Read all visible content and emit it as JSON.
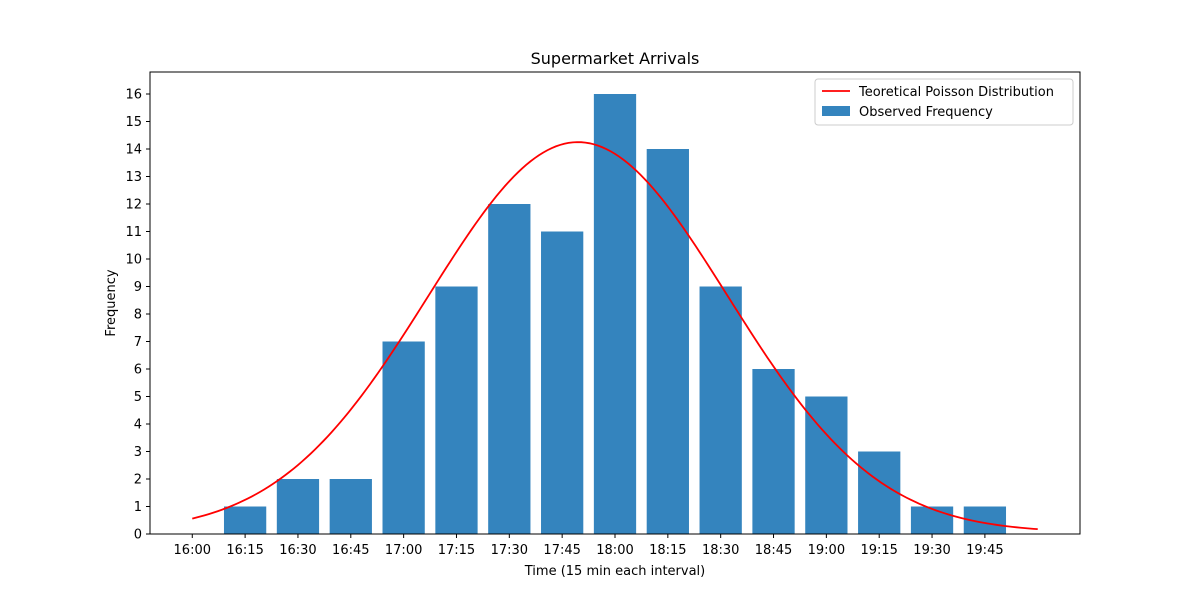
{
  "chart_data": {
    "type": "bar",
    "title": "Supermarket Arrivals",
    "xlabel": "Time (15 min each interval)",
    "ylabel": "Frequency",
    "categories": [
      "16:00",
      "16:15",
      "16:30",
      "16:45",
      "17:00",
      "17:15",
      "17:30",
      "17:45",
      "18:00",
      "18:15",
      "18:30",
      "18:45",
      "19:00",
      "19:15",
      "19:30",
      "19:45"
    ],
    "values": [
      0,
      1,
      2,
      2,
      7,
      9,
      12,
      11,
      16,
      14,
      9,
      6,
      5,
      3,
      1,
      1
    ],
    "xlim": [
      -0.8,
      16.8
    ],
    "ylim": [
      0,
      16.8
    ],
    "yticks": [
      0,
      1,
      2,
      3,
      4,
      5,
      6,
      7,
      8,
      9,
      10,
      11,
      12,
      13,
      14,
      15,
      16
    ],
    "curve": {
      "name": "Teoretical Poisson Distribution",
      "type": "line",
      "x_range": [
        0,
        16
      ],
      "mean": 7.3,
      "std": 2.83,
      "peak": 14.25,
      "floor": 0.05
    },
    "legend": {
      "position": "top-right",
      "entries": [
        {
          "label": "Teoretical Poisson Distribution",
          "kind": "line"
        },
        {
          "label": "Observed Frequency",
          "kind": "bar"
        }
      ]
    },
    "colors": {
      "bar": "#3484be",
      "curve": "#ff0000",
      "axis": "#000000"
    }
  }
}
